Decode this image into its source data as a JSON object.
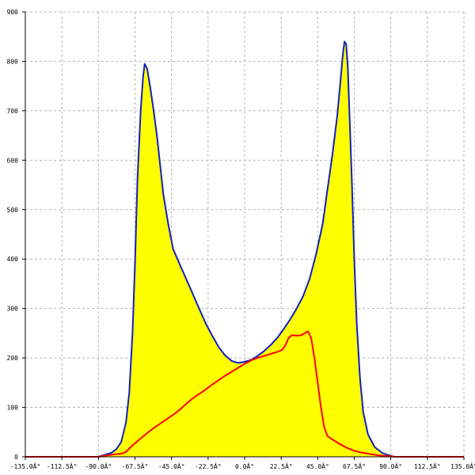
{
  "chart_data": {
    "type": "area",
    "title": "",
    "xlabel": "",
    "ylabel": "",
    "xlim": [
      -135,
      135
    ],
    "ylim": [
      0,
      900
    ],
    "x_ticks": [
      {
        "value": -135,
        "label": "-135.0Â°"
      },
      {
        "value": -112.5,
        "label": "-112.5Â°"
      },
      {
        "value": -90,
        "label": "-90.0Â°"
      },
      {
        "value": -67.5,
        "label": "-67.5Â°"
      },
      {
        "value": -45,
        "label": "-45.0Â°"
      },
      {
        "value": -22.5,
        "label": "-22.5Â°"
      },
      {
        "value": 0,
        "label": "0.0Â°"
      },
      {
        "value": 22.5,
        "label": "22.5Â°"
      },
      {
        "value": 45,
        "label": "45.0Â°"
      },
      {
        "value": 67.5,
        "label": "67.5Â°"
      },
      {
        "value": 90,
        "label": "90.0Â°"
      },
      {
        "value": 112.5,
        "label": "112.5Â°"
      },
      {
        "value": 135,
        "label": "135.0Â°"
      }
    ],
    "y_ticks": [
      {
        "value": 0,
        "label": "0"
      },
      {
        "value": 100,
        "label": "100"
      },
      {
        "value": 200,
        "label": "200"
      },
      {
        "value": 300,
        "label": "300"
      },
      {
        "value": 400,
        "label": "400"
      },
      {
        "value": 500,
        "label": "500"
      },
      {
        "value": 600,
        "label": "600"
      },
      {
        "value": 700,
        "label": "700"
      },
      {
        "value": 800,
        "label": "800"
      },
      {
        "value": 900,
        "label": "900"
      }
    ],
    "grid": true,
    "legend": "none",
    "series": [
      {
        "style": "filled-area",
        "color": "#1020c0",
        "fill": "#ffff00",
        "points": [
          [
            -135,
            0
          ],
          [
            -90,
            0
          ],
          [
            -87,
            3
          ],
          [
            -82,
            8
          ],
          [
            -79,
            15
          ],
          [
            -76,
            30
          ],
          [
            -73,
            70
          ],
          [
            -71,
            130
          ],
          [
            -69,
            250
          ],
          [
            -67.5,
            390
          ],
          [
            -66,
            560
          ],
          [
            -64,
            700
          ],
          [
            -62.5,
            770
          ],
          [
            -61.5,
            795
          ],
          [
            -60,
            785
          ],
          [
            -58,
            745
          ],
          [
            -56,
            700
          ],
          [
            -54,
            650
          ],
          [
            -52,
            590
          ],
          [
            -50,
            530
          ],
          [
            -47,
            470
          ],
          [
            -44,
            420
          ],
          [
            -40,
            390
          ],
          [
            -36,
            360
          ],
          [
            -32,
            330
          ],
          [
            -28,
            300
          ],
          [
            -24,
            270
          ],
          [
            -20,
            245
          ],
          [
            -16,
            222
          ],
          [
            -12,
            205
          ],
          [
            -8,
            194
          ],
          [
            -4,
            190
          ],
          [
            0,
            192
          ],
          [
            4,
            196
          ],
          [
            8,
            204
          ],
          [
            12,
            214
          ],
          [
            16,
            226
          ],
          [
            20,
            240
          ],
          [
            24,
            258
          ],
          [
            28,
            278
          ],
          [
            32,
            300
          ],
          [
            36,
            325
          ],
          [
            40,
            360
          ],
          [
            44,
            410
          ],
          [
            48,
            470
          ],
          [
            51,
            540
          ],
          [
            54,
            610
          ],
          [
            57,
            690
          ],
          [
            59,
            760
          ],
          [
            60.5,
            815
          ],
          [
            61.5,
            840
          ],
          [
            62.5,
            835
          ],
          [
            63.5,
            790
          ],
          [
            64.5,
            700
          ],
          [
            66,
            560
          ],
          [
            67.5,
            400
          ],
          [
            69,
            270
          ],
          [
            71,
            160
          ],
          [
            73,
            90
          ],
          [
            76,
            45
          ],
          [
            80,
            20
          ],
          [
            85,
            7
          ],
          [
            90,
            2
          ],
          [
            92,
            0
          ],
          [
            135,
            0
          ]
        ]
      },
      {
        "style": "line",
        "color": "#ff0000",
        "points": [
          [
            -135,
            0
          ],
          [
            -90,
            0
          ],
          [
            -85,
            3
          ],
          [
            -80,
            5
          ],
          [
            -77,
            6
          ],
          [
            -75,
            7
          ],
          [
            -73,
            10
          ],
          [
            -71,
            17
          ],
          [
            -68,
            26
          ],
          [
            -64,
            37
          ],
          [
            -60,
            48
          ],
          [
            -56,
            58
          ],
          [
            -52,
            67
          ],
          [
            -48,
            76
          ],
          [
            -44,
            85
          ],
          [
            -40,
            95
          ],
          [
            -36,
            107
          ],
          [
            -32,
            118
          ],
          [
            -28,
            127
          ],
          [
            -24,
            136
          ],
          [
            -20,
            146
          ],
          [
            -16,
            155
          ],
          [
            -12,
            164
          ],
          [
            -8,
            172
          ],
          [
            -4,
            180
          ],
          [
            0,
            188
          ],
          [
            4,
            195
          ],
          [
            8,
            200
          ],
          [
            12,
            204
          ],
          [
            16,
            208
          ],
          [
            20,
            212
          ],
          [
            23,
            216
          ],
          [
            25,
            225
          ],
          [
            27,
            240
          ],
          [
            29,
            246
          ],
          [
            32,
            245
          ],
          [
            35,
            246
          ],
          [
            37,
            250
          ],
          [
            39,
            254
          ],
          [
            41,
            240
          ],
          [
            43,
            200
          ],
          [
            45,
            150
          ],
          [
            47,
            100
          ],
          [
            49,
            60
          ],
          [
            51,
            42
          ],
          [
            55,
            33
          ],
          [
            59,
            25
          ],
          [
            63,
            18
          ],
          [
            67,
            13
          ],
          [
            71,
            9
          ],
          [
            75,
            7
          ],
          [
            80,
            4
          ],
          [
            85,
            2
          ],
          [
            90,
            1
          ],
          [
            93,
            0
          ],
          [
            135,
            0
          ]
        ]
      }
    ]
  }
}
